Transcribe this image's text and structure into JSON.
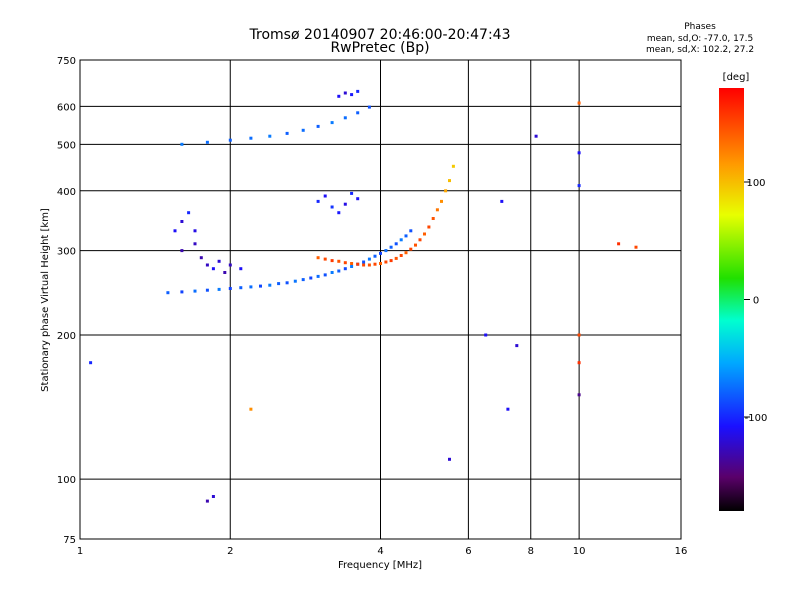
{
  "header": {
    "title": "Tromsø 20140907 20:46:00-20:47:43",
    "subtitle": "RwPretec (Bp)",
    "phase_title": "Phases",
    "phase_o": "mean, sd,O: -77.0, 17.5",
    "phase_x": "mean, sd,X: 102.2, 27.2"
  },
  "chart_data": {
    "type": "scatter",
    "title": "Tromsø 20140907 20:46:00-20:47:43",
    "subtitle": "RwPretec (Bp)",
    "xlabel": "Frequency [MHz]",
    "ylabel": "Stationary phase Virtual Height [km]",
    "x_scale": "log",
    "y_scale": "log",
    "xlim": [
      1,
      16
    ],
    "ylim": [
      75,
      750
    ],
    "x_ticks": [
      "1",
      "2",
      "4",
      "6",
      "8",
      "10",
      "16"
    ],
    "y_ticks": [
      "75",
      "100",
      "200",
      "300",
      "400",
      "500",
      "600",
      "750"
    ],
    "grid": true,
    "colorbar": {
      "label": "[deg]",
      "ticks": [
        "100",
        "0",
        "-100"
      ],
      "range": [
        -180,
        180
      ]
    },
    "series": [
      {
        "values": [
          [
            1.5,
            245,
            -80
          ],
          [
            1.6,
            246,
            -90
          ],
          [
            1.7,
            247,
            -75
          ],
          [
            1.8,
            248,
            -85
          ],
          [
            1.9,
            249,
            -70
          ],
          [
            2.0,
            250,
            -90
          ],
          [
            2.1,
            251,
            -80
          ],
          [
            2.2,
            252,
            -75
          ],
          [
            2.3,
            253,
            -88
          ],
          [
            2.4,
            254,
            -70
          ],
          [
            2.5,
            256,
            -80
          ],
          [
            2.6,
            257,
            -85
          ],
          [
            2.7,
            259,
            -72
          ],
          [
            2.8,
            261,
            -80
          ],
          [
            2.9,
            263,
            -90
          ],
          [
            3.0,
            265,
            -75
          ],
          [
            3.1,
            267,
            -85
          ],
          [
            3.2,
            270,
            -70
          ],
          [
            3.3,
            272,
            -80
          ],
          [
            3.4,
            275,
            -88
          ],
          [
            3.5,
            278,
            -70
          ],
          [
            3.6,
            281,
            -80
          ],
          [
            3.7,
            284,
            -85
          ],
          [
            3.8,
            288,
            -72
          ],
          [
            3.9,
            292,
            -80
          ],
          [
            4.0,
            296,
            -90
          ],
          [
            4.1,
            300,
            -75
          ],
          [
            4.2,
            305,
            -80
          ],
          [
            4.3,
            310,
            -85
          ],
          [
            4.4,
            316,
            -70
          ],
          [
            4.5,
            322,
            -80
          ],
          [
            4.6,
            330,
            -85
          ]
        ]
      },
      {
        "values": [
          [
            3.0,
            290,
            140
          ],
          [
            3.1,
            288,
            150
          ],
          [
            3.2,
            286,
            155
          ],
          [
            3.3,
            285,
            145
          ],
          [
            3.4,
            283,
            150
          ],
          [
            3.5,
            282,
            140
          ],
          [
            3.6,
            281,
            155
          ],
          [
            3.7,
            280,
            150
          ],
          [
            3.8,
            280,
            145
          ],
          [
            3.9,
            281,
            150
          ],
          [
            4.0,
            282,
            140
          ],
          [
            4.1,
            284,
            150
          ],
          [
            4.2,
            286,
            155
          ],
          [
            4.3,
            289,
            145
          ],
          [
            4.4,
            293,
            150
          ],
          [
            4.5,
            297,
            140
          ],
          [
            4.6,
            302,
            150
          ],
          [
            4.7,
            308,
            145
          ],
          [
            4.8,
            316,
            150
          ],
          [
            4.9,
            325,
            140
          ],
          [
            5.0,
            336,
            150
          ],
          [
            5.1,
            350,
            145
          ],
          [
            5.2,
            365,
            130
          ],
          [
            5.3,
            380,
            120
          ],
          [
            5.4,
            400,
            110
          ],
          [
            5.5,
            420,
            100
          ],
          [
            5.6,
            450,
            95
          ]
        ]
      },
      {
        "values": [
          [
            1.6,
            500,
            -70
          ],
          [
            1.8,
            505,
            -75
          ],
          [
            2.0,
            510,
            -80
          ],
          [
            2.2,
            515,
            -75
          ],
          [
            2.4,
            520,
            -70
          ],
          [
            2.6,
            527,
            -80
          ],
          [
            2.8,
            535,
            -75
          ],
          [
            3.0,
            545,
            -80
          ],
          [
            3.2,
            555,
            -70
          ],
          [
            3.4,
            568,
            -75
          ],
          [
            3.6,
            582,
            -80
          ],
          [
            3.8,
            598,
            -85
          ]
        ]
      },
      {
        "values": [
          [
            1.55,
            330,
            -110
          ],
          [
            1.6,
            345,
            -120
          ],
          [
            1.65,
            360,
            -100
          ],
          [
            1.7,
            330,
            -115
          ],
          [
            1.75,
            290,
            -130
          ],
          [
            1.8,
            280,
            -125
          ],
          [
            1.85,
            275,
            -110
          ],
          [
            1.9,
            285,
            -120
          ],
          [
            1.95,
            270,
            -130
          ],
          [
            2.0,
            280,
            -125
          ],
          [
            2.1,
            275,
            -110
          ],
          [
            1.6,
            300,
            -130
          ],
          [
            1.7,
            310,
            -125
          ]
        ]
      },
      {
        "values": [
          [
            3.0,
            380,
            -100
          ],
          [
            3.1,
            390,
            -110
          ],
          [
            3.2,
            370,
            -95
          ],
          [
            3.3,
            360,
            -105
          ],
          [
            3.4,
            375,
            -115
          ],
          [
            3.5,
            395,
            -100
          ],
          [
            3.6,
            385,
            -110
          ],
          [
            3.3,
            630,
            -110
          ],
          [
            3.4,
            640,
            -120
          ],
          [
            3.5,
            635,
            -105
          ],
          [
            3.6,
            645,
            -100
          ]
        ]
      },
      {
        "values": [
          [
            10.0,
            610,
            140
          ],
          [
            10.0,
            480,
            -110
          ],
          [
            10.0,
            410,
            -100
          ],
          [
            10.0,
            200,
            150
          ],
          [
            10.0,
            175,
            160
          ],
          [
            10.0,
            150,
            -140
          ],
          [
            12.0,
            310,
            160
          ],
          [
            13.0,
            305,
            150
          ],
          [
            8.2,
            520,
            -120
          ],
          [
            7.0,
            380,
            -110
          ],
          [
            7.5,
            190,
            -120
          ],
          [
            6.5,
            200,
            -110
          ],
          [
            1.8,
            90,
            -130
          ],
          [
            1.85,
            92,
            -120
          ],
          [
            1.05,
            175,
            -100
          ],
          [
            5.5,
            110,
            -120
          ],
          [
            7.2,
            140,
            -110
          ],
          [
            2.2,
            140,
            120
          ]
        ]
      }
    ]
  }
}
